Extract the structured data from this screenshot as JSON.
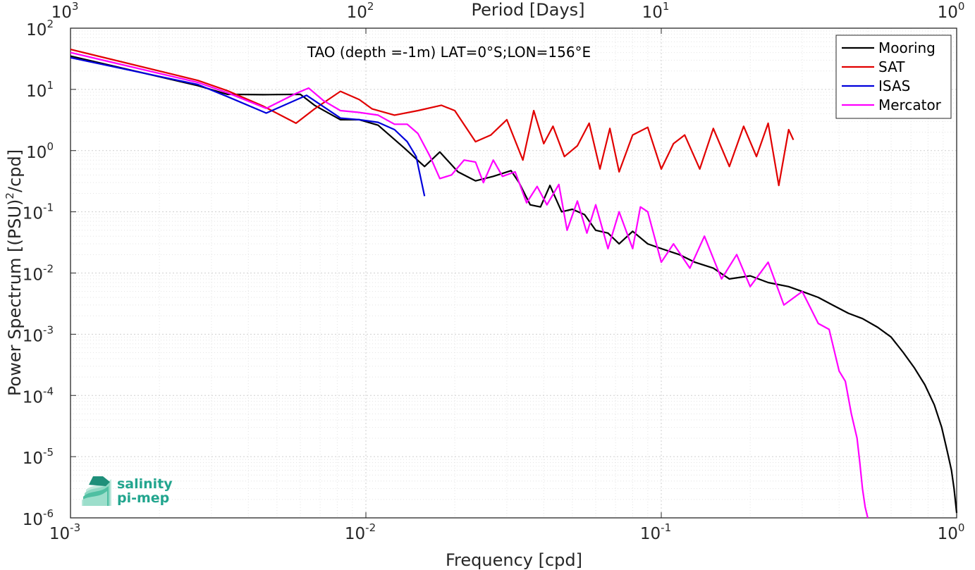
{
  "chart_data": {
    "type": "line",
    "title": "TAO (depth =-1m) LAT=0°S;LON=156°E",
    "xlabel": "Frequency [cpd]",
    "ylabel": "Power Spectrum [(PSU)",
    "ylabel_sup": "2",
    "ylabel_tail": "/cpd]",
    "top_xlabel": "Period [Days]",
    "xscale": "log",
    "yscale": "log",
    "xlim": [
      0.001,
      1
    ],
    "ylim": [
      1e-06,
      100
    ],
    "grid": true,
    "legend_position": "top-right",
    "x_ticks": [
      {
        "base": "10",
        "exp": "-3",
        "value": 0.001
      },
      {
        "base": "10",
        "exp": "-2",
        "value": 0.01
      },
      {
        "base": "10",
        "exp": "-1",
        "value": 0.1
      },
      {
        "base": "10",
        "exp": "0",
        "value": 1
      }
    ],
    "top_ticks": [
      {
        "base": "10",
        "exp": "3",
        "value": 0.001
      },
      {
        "base": "10",
        "exp": "2",
        "value": 0.01
      },
      {
        "base": "10",
        "exp": "1",
        "value": 0.1
      },
      {
        "base": "10",
        "exp": "0",
        "value": 1
      }
    ],
    "y_ticks": [
      {
        "base": "10",
        "exp": "2",
        "value": 100
      },
      {
        "base": "10",
        "exp": "1",
        "value": 10
      },
      {
        "base": "10",
        "exp": "0",
        "value": 1
      },
      {
        "base": "10",
        "exp": "-1",
        "value": 0.1
      },
      {
        "base": "10",
        "exp": "-2",
        "value": 0.01
      },
      {
        "base": "10",
        "exp": "-3",
        "value": 0.001
      },
      {
        "base": "10",
        "exp": "-4",
        "value": 0.0001
      },
      {
        "base": "10",
        "exp": "-5",
        "value": 1e-05
      },
      {
        "base": "10",
        "exp": "-6",
        "value": 1e-06
      }
    ],
    "series": [
      {
        "name": "Mooring",
        "color": "#000000",
        "x": [
          0.001,
          0.0027,
          0.0034,
          0.0045,
          0.006,
          0.0067,
          0.0082,
          0.0095,
          0.011,
          0.0135,
          0.0158,
          0.0178,
          0.0205,
          0.0235,
          0.027,
          0.031,
          0.033,
          0.036,
          0.039,
          0.042,
          0.046,
          0.05,
          0.055,
          0.06,
          0.066,
          0.072,
          0.08,
          0.09,
          0.1,
          0.115,
          0.13,
          0.15,
          0.17,
          0.2,
          0.23,
          0.27,
          0.3,
          0.34,
          0.38,
          0.43,
          0.48,
          0.54,
          0.6,
          0.66,
          0.72,
          0.78,
          0.84,
          0.89,
          0.93,
          0.96,
          0.98,
          1.0
        ],
        "y": [
          35,
          11.5,
          8.3,
          8.2,
          8.3,
          5.5,
          3.2,
          3.2,
          2.6,
          1.1,
          0.55,
          0.95,
          0.45,
          0.32,
          0.38,
          0.47,
          0.3,
          0.13,
          0.12,
          0.27,
          0.1,
          0.11,
          0.09,
          0.05,
          0.045,
          0.03,
          0.048,
          0.03,
          0.025,
          0.02,
          0.015,
          0.012,
          0.008,
          0.009,
          0.007,
          0.006,
          0.005,
          0.004,
          0.003,
          0.0022,
          0.0018,
          0.0013,
          0.0009,
          0.0005,
          0.00028,
          0.00015,
          7e-05,
          3e-05,
          1.2e-05,
          6e-06,
          3e-06,
          1.2e-06
        ]
      },
      {
        "name": "SAT",
        "color": "#e10000",
        "x": [
          0.001,
          0.0027,
          0.0034,
          0.0045,
          0.0058,
          0.0067,
          0.0082,
          0.0095,
          0.0105,
          0.0125,
          0.015,
          0.018,
          0.02,
          0.0235,
          0.0265,
          0.03,
          0.034,
          0.037,
          0.04,
          0.043,
          0.047,
          0.052,
          0.057,
          0.062,
          0.067,
          0.072,
          0.08,
          0.09,
          0.1,
          0.11,
          0.12,
          0.135,
          0.15,
          0.17,
          0.19,
          0.21,
          0.23,
          0.25,
          0.27,
          0.28
        ],
        "y": [
          45,
          14,
          9.5,
          5.3,
          2.8,
          4.8,
          9.3,
          6.8,
          4.8,
          3.8,
          4.5,
          5.5,
          4.5,
          1.4,
          1.8,
          3.2,
          0.7,
          4.5,
          1.3,
          2.5,
          0.8,
          1.2,
          2.8,
          0.5,
          2.3,
          0.45,
          1.8,
          2.4,
          0.5,
          1.3,
          1.8,
          0.5,
          2.3,
          0.55,
          2.5,
          0.8,
          2.8,
          0.27,
          2.2,
          1.5
        ]
      },
      {
        "name": "ISAS",
        "color": "#0000dc",
        "x": [
          0.001,
          0.0027,
          0.0034,
          0.0046,
          0.0063,
          0.0082,
          0.0095,
          0.011,
          0.0125,
          0.0138,
          0.0148,
          0.0158
        ],
        "y": [
          33,
          12,
          7.6,
          4.1,
          8.0,
          3.4,
          3.2,
          2.9,
          2.2,
          1.4,
          0.8,
          0.18
        ]
      },
      {
        "name": "Mercator",
        "color": "#ff00ff",
        "x": [
          0.001,
          0.0027,
          0.0034,
          0.0046,
          0.0058,
          0.0064,
          0.0072,
          0.0082,
          0.0095,
          0.011,
          0.0125,
          0.0138,
          0.015,
          0.0165,
          0.0178,
          0.0195,
          0.0215,
          0.0235,
          0.025,
          0.027,
          0.029,
          0.032,
          0.035,
          0.038,
          0.041,
          0.045,
          0.048,
          0.052,
          0.056,
          0.06,
          0.066,
          0.072,
          0.08,
          0.085,
          0.09,
          0.1,
          0.11,
          0.125,
          0.14,
          0.16,
          0.18,
          0.2,
          0.23,
          0.26,
          0.3,
          0.34,
          0.37,
          0.4,
          0.42,
          0.44,
          0.46,
          0.47,
          0.48,
          0.49,
          0.5
        ],
        "y": [
          40,
          13,
          8.8,
          4.9,
          8.6,
          10.5,
          6.5,
          4.5,
          4.2,
          3.8,
          2.7,
          2.7,
          1.9,
          0.8,
          0.35,
          0.4,
          0.7,
          0.65,
          0.3,
          0.7,
          0.38,
          0.45,
          0.14,
          0.26,
          0.13,
          0.28,
          0.05,
          0.15,
          0.045,
          0.13,
          0.025,
          0.1,
          0.025,
          0.12,
          0.1,
          0.015,
          0.03,
          0.012,
          0.04,
          0.008,
          0.02,
          0.006,
          0.015,
          0.003,
          0.005,
          0.0015,
          0.0012,
          0.00025,
          0.00017,
          5e-05,
          2e-05,
          8e-06,
          3e-06,
          1.5e-06,
          1e-06
        ]
      }
    ]
  },
  "logo": {
    "line1": "salinity",
    "line2": "pi-mep"
  }
}
